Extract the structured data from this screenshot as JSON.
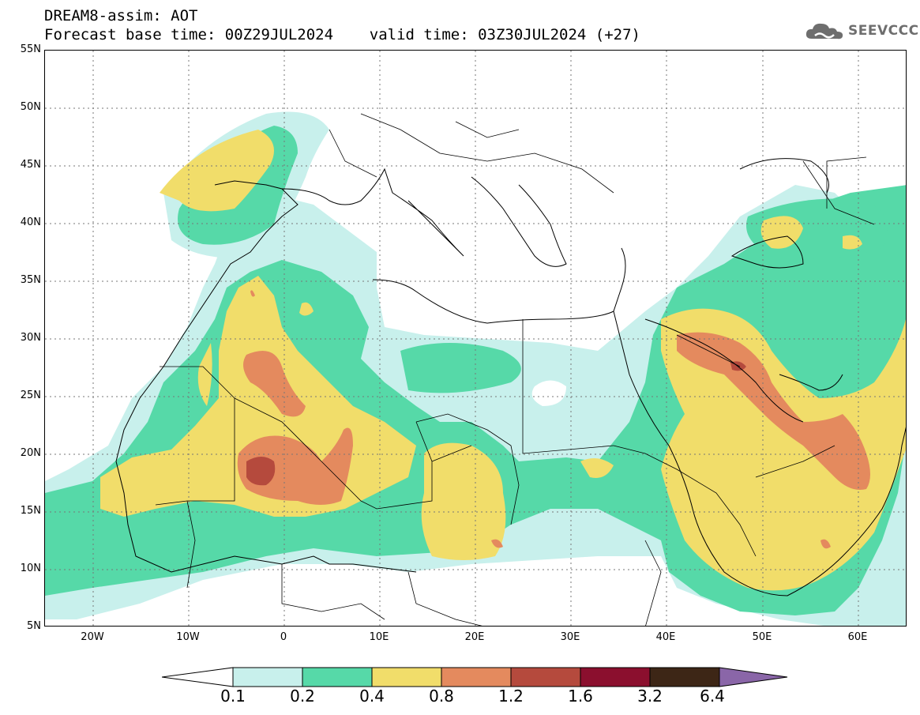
{
  "header": {
    "title_line1": "DREAM8-assim: AOT",
    "title_line2": "Forecast base time: 00Z29JUL2024    valid time: 03Z30JUL2024 (+27)"
  },
  "logo": {
    "text": "SEEVCCC",
    "icon": "cloud-icon"
  },
  "map": {
    "type": "contour-fill",
    "variable": "AOT",
    "lon_range": [
      -25,
      65
    ],
    "lat_range": [
      5,
      55
    ],
    "lat_ticks": [
      "55N",
      "50N",
      "45N",
      "40N",
      "35N",
      "30N",
      "25N",
      "20N",
      "15N",
      "10N",
      "5N"
    ],
    "lon_ticks": [
      "20W",
      "10W",
      "0",
      "10E",
      "20E",
      "30E",
      "40E",
      "50E",
      "60E"
    ],
    "grid": true
  },
  "colorbar": {
    "labels": [
      "0.1",
      "0.2",
      "0.4",
      "0.8",
      "1.2",
      "1.6",
      "3.2",
      "6.4"
    ],
    "colors": [
      "#c8f0ec",
      "#56d9a8",
      "#f1dd6a",
      "#e48a5e",
      "#b54a3d",
      "#8b0f2e",
      "#3d2616",
      "#8a66a8"
    ],
    "low_arrow_color": "#ffffff"
  }
}
